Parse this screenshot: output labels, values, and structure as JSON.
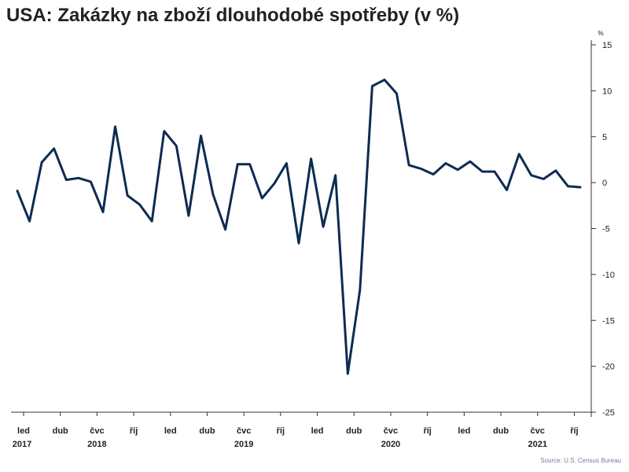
{
  "title": "USA: Zakázky na zboží dlouhodobé spotřeby (v %)",
  "source": "Source: U.S. Census Bureau",
  "colors": {
    "line": "#0d2b52",
    "axis": "#333333",
    "text": "#222222",
    "source": "#6f7f95"
  },
  "chart_data": {
    "type": "line",
    "title": "USA: Zakázky na zboží dlouhodobé spotřeby (v %)",
    "y_unit_label": "%",
    "ylim": [
      -25,
      15
    ],
    "y_ticks": [
      15,
      10,
      5,
      0,
      -5,
      -10,
      -15,
      -20,
      -25
    ],
    "grid": false,
    "x_start": "2017-01",
    "x_ticks": [
      {
        "month": "2017-01",
        "label": "led",
        "year": "2017"
      },
      {
        "month": "2017-04",
        "label": "dub",
        "year": ""
      },
      {
        "month": "2017-07",
        "label": "čvc",
        "year": "2018"
      },
      {
        "month": "2017-10",
        "label": "říj",
        "year": ""
      },
      {
        "month": "2018-01",
        "label": "led",
        "year": ""
      },
      {
        "month": "2018-04",
        "label": "dub",
        "year": ""
      },
      {
        "month": "2018-07",
        "label": "čvc",
        "year": "2019"
      },
      {
        "month": "2018-10",
        "label": "říj",
        "year": ""
      },
      {
        "month": "2019-01",
        "label": "led",
        "year": ""
      },
      {
        "month": "2019-04",
        "label": "dub",
        "year": ""
      },
      {
        "month": "2019-07",
        "label": "čvc",
        "year": "2020"
      },
      {
        "month": "2019-10",
        "label": "říj",
        "year": ""
      },
      {
        "month": "2020-01",
        "label": "led",
        "year": ""
      },
      {
        "month": "2020-04",
        "label": "dub",
        "year": ""
      },
      {
        "month": "2020-07",
        "label": "čvc",
        "year": "2021"
      },
      {
        "month": "2020-10",
        "label": "říj",
        "year": ""
      }
    ],
    "series": [
      {
        "values": [
          -0.9,
          -4.2,
          2.2,
          3.7,
          0.3,
          0.5,
          0.1,
          -3.2,
          6.1,
          -1.4,
          -2.4,
          -4.2,
          5.6,
          4.0,
          -3.6,
          5.1,
          -1.3,
          -5.1,
          2.0,
          2.0,
          -1.7,
          -0.1,
          2.1,
          -6.6,
          2.6,
          -4.8,
          0.8,
          -20.8,
          -11.7,
          10.5,
          11.2,
          9.7,
          1.9,
          1.5,
          0.9,
          2.1,
          1.4,
          2.3,
          1.2,
          1.2,
          -0.8,
          3.1,
          0.8,
          0.4,
          1.3,
          -0.4,
          -0.5
        ]
      }
    ]
  }
}
